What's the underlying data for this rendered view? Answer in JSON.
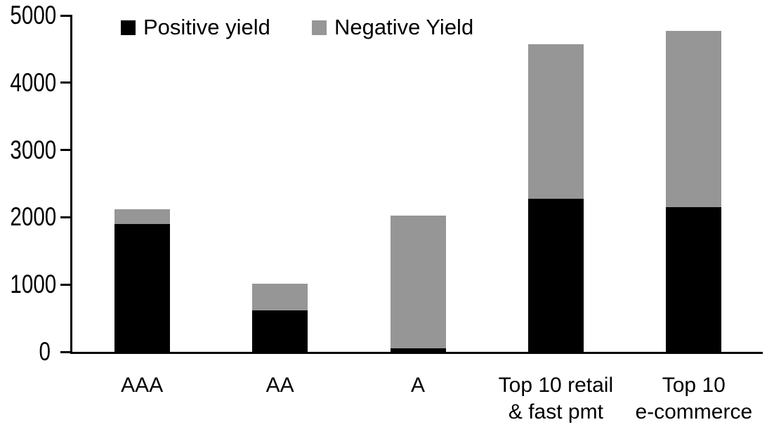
{
  "chart_data": {
    "type": "bar",
    "stacked": true,
    "title": "",
    "xlabel": "",
    "ylabel": "",
    "categories": [
      "AAA",
      "AA",
      "A",
      "Top 10 retail & fast pmt",
      "Top 10 e-commerce"
    ],
    "category_lines": [
      [
        "AAA"
      ],
      [
        "AA"
      ],
      [
        "A"
      ],
      [
        "Top 10 retail",
        "& fast pmt"
      ],
      [
        "Top 10",
        "e-commerce"
      ]
    ],
    "series": [
      {
        "name": "Positive yield",
        "color": "#000000",
        "values": [
          1900,
          620,
          50,
          2280,
          2150
        ]
      },
      {
        "name": "Negative Yield",
        "color": "#969696",
        "values": [
          220,
          390,
          1980,
          2290,
          2620
        ]
      }
    ],
    "totals": [
      2120,
      1010,
      2030,
      4570,
      4770
    ],
    "ylim": [
      0,
      5000
    ],
    "yticks": [
      0,
      1000,
      2000,
      3000,
      4000,
      5000
    ],
    "grid": false,
    "legend_position": "top",
    "background_color": "#ffffff",
    "axis_color": "#000000"
  },
  "legend": {
    "items": [
      {
        "label": "Positive yield",
        "color": "#000000"
      },
      {
        "label": "Negative Yield",
        "color": "#969696"
      }
    ]
  }
}
